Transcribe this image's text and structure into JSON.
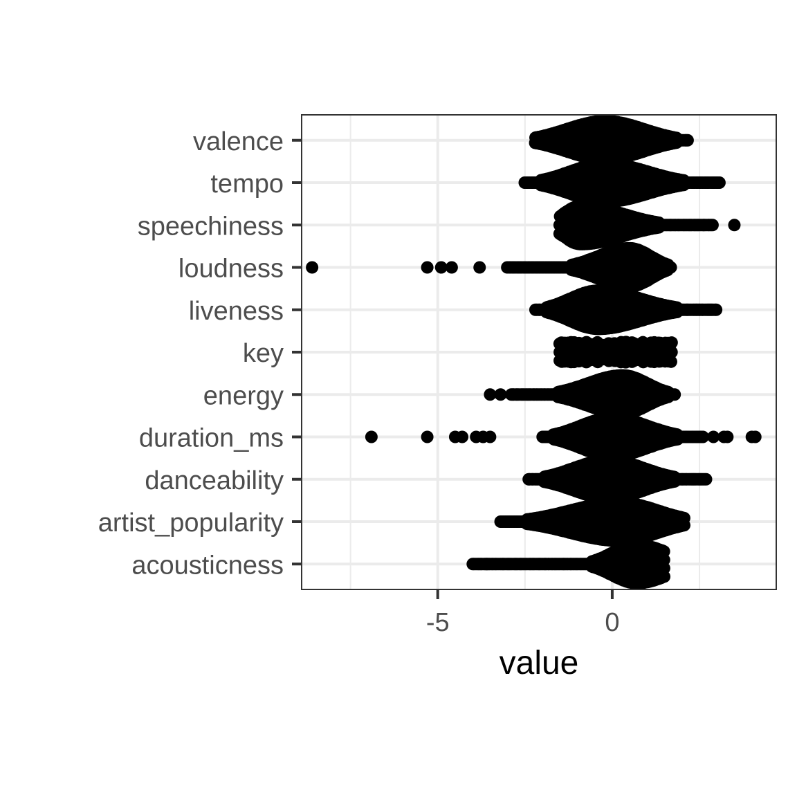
{
  "chart_data": {
    "type": "scatter",
    "subtype": "beeswarm",
    "title": "",
    "xlabel": "value",
    "ylabel": "",
    "xlim": [
      -8.9,
      4.7
    ],
    "x_ticks": [
      -5,
      0
    ],
    "x_tick_labels": [
      "-5",
      "0"
    ],
    "grid": true,
    "categories": [
      "acousticness",
      "artist_popularity",
      "danceability",
      "duration_ms",
      "energy",
      "key",
      "liveness",
      "loudness",
      "speechiness",
      "tempo",
      "valence"
    ],
    "series": [
      {
        "category": "acousticness",
        "min": -4.0,
        "max": 1.5,
        "mode": 0.7,
        "spread_low": 0.7,
        "spread_high": 0.9,
        "outliers": [
          -3.6
        ],
        "max_halfwidth": 0.48
      },
      {
        "category": "artist_popularity",
        "min": -3.2,
        "max": 2.1,
        "mode": 0.2,
        "spread_low": 1.4,
        "spread_high": 1.1,
        "outliers": [],
        "max_halfwidth": 0.48
      },
      {
        "category": "danceability",
        "min": -2.4,
        "max": 2.7,
        "mode": -0.1,
        "spread_low": 1.0,
        "spread_high": 1.0,
        "outliers": [],
        "max_halfwidth": 0.48
      },
      {
        "category": "duration_ms",
        "min": -2.0,
        "max": 2.6,
        "mode": 0.0,
        "spread_low": 0.9,
        "spread_high": 1.0,
        "outliers": [
          -6.9,
          -5.3,
          -4.5,
          -4.3,
          -3.9,
          -3.7,
          -3.5,
          2.9,
          3.2,
          3.3,
          4.0,
          4.1
        ],
        "max_halfwidth": 0.48
      },
      {
        "category": "energy",
        "min": -2.9,
        "max": 1.8,
        "mode": 0.3,
        "spread_low": 1.0,
        "spread_high": 0.7,
        "outliers": [
          -3.5,
          -3.2
        ],
        "max_halfwidth": 0.48
      },
      {
        "category": "key",
        "min": -1.5,
        "max": 1.7,
        "mode": -0.4,
        "spread_low": 1.5,
        "spread_high": 1.5,
        "outliers": [],
        "max_halfwidth": 0.27
      },
      {
        "category": "liveness",
        "min": -2.2,
        "max": 3.0,
        "mode": -0.4,
        "spread_low": 0.8,
        "spread_high": 1.2,
        "outliers": [],
        "max_halfwidth": 0.48
      },
      {
        "category": "loudness",
        "min": -3.0,
        "max": 1.7,
        "mode": 0.5,
        "spread_low": 0.9,
        "spread_high": 0.6,
        "outliers": [
          -8.6,
          -5.3,
          -4.9,
          -4.6,
          -3.8
        ],
        "max_halfwidth": 0.48
      },
      {
        "category": "speechiness",
        "min": -1.5,
        "max": 2.9,
        "mode": -0.9,
        "spread_low": 0.5,
        "spread_high": 1.2,
        "outliers": [
          3.5
        ],
        "max_halfwidth": 0.48
      },
      {
        "category": "tempo",
        "min": -2.5,
        "max": 3.1,
        "mode": -0.2,
        "spread_low": 1.0,
        "spread_high": 1.2,
        "outliers": [],
        "max_halfwidth": 0.48
      },
      {
        "category": "valence",
        "min": -2.2,
        "max": 2.2,
        "mode": -0.2,
        "spread_low": 1.1,
        "spread_high": 1.1,
        "outliers": [],
        "max_halfwidth": 0.48
      }
    ],
    "point_color": "#000000",
    "grid_color": "#ebebeb",
    "panel_border_color": "#333333"
  }
}
